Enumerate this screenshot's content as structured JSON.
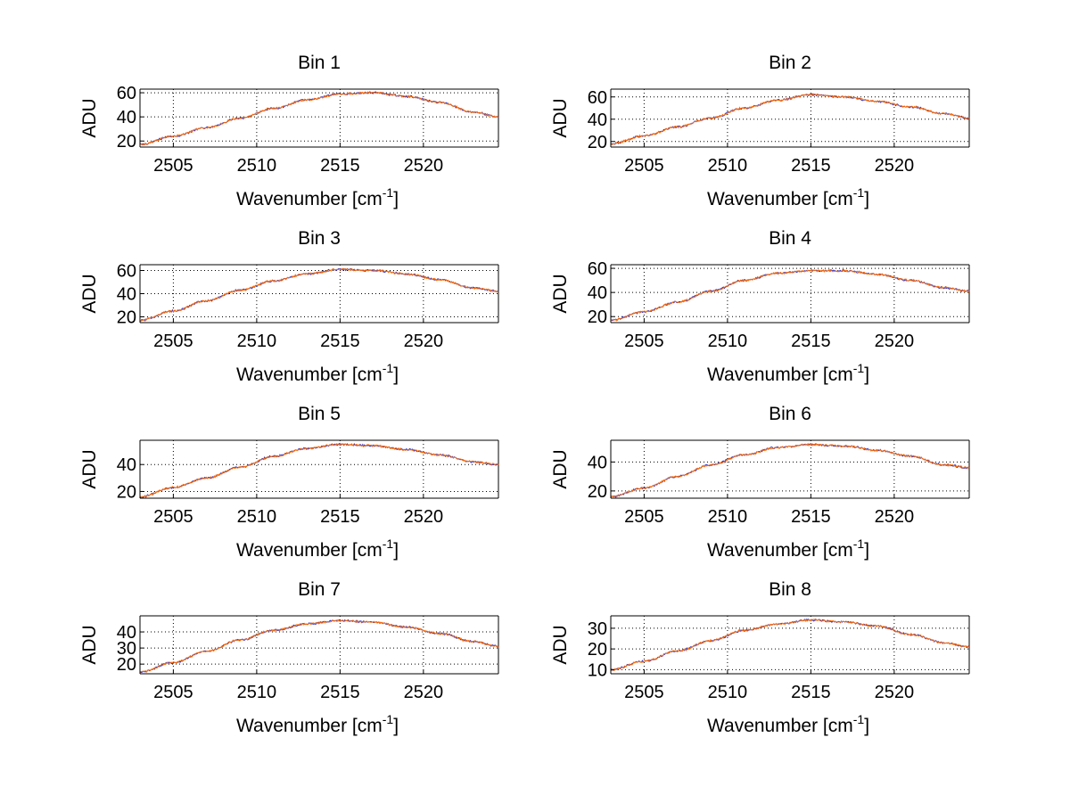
{
  "figure": {
    "background": "#ffffff",
    "layout": "4 rows x 2 columns",
    "series_colors": [
      "#3030c0",
      "#ff6a00"
    ]
  },
  "chart_data": [
    {
      "type": "line",
      "title": "Bin 1",
      "xlabel_main": "Wavenumber [cm",
      "xlabel_sup": "-1",
      "xlabel_end": "]",
      "ylabel": "ADU",
      "xlim": [
        2503,
        2524.5
      ],
      "ylim": [
        15,
        63
      ],
      "xticks": [
        2505,
        2510,
        2515,
        2520
      ],
      "yticks": [
        20,
        40,
        60
      ],
      "grid": true,
      "series": [
        {
          "x": [
            2503,
            2505,
            2507,
            2509,
            2511,
            2513,
            2515,
            2517,
            2519,
            2521,
            2523,
            2524.5
          ],
          "values": [
            17,
            24,
            31,
            39,
            47,
            54,
            59,
            60,
            57,
            52,
            44,
            40
          ]
        }
      ]
    },
    {
      "type": "line",
      "title": "Bin 2",
      "xlabel_main": "Wavenumber [cm",
      "xlabel_sup": "-1",
      "xlabel_end": "]",
      "ylabel": "ADU",
      "xlim": [
        2503,
        2524.5
      ],
      "ylim": [
        15,
        67
      ],
      "xticks": [
        2505,
        2510,
        2515,
        2520
      ],
      "yticks": [
        20,
        40,
        60
      ],
      "grid": true,
      "series": [
        {
          "x": [
            2503,
            2505,
            2507,
            2509,
            2511,
            2513,
            2515,
            2517,
            2519,
            2521,
            2523,
            2524.5
          ],
          "values": [
            18,
            25,
            33,
            41,
            50,
            57,
            62,
            60,
            56,
            51,
            45,
            41
          ]
        }
      ]
    },
    {
      "type": "line",
      "title": "Bin 3",
      "xlabel_main": "Wavenumber [cm",
      "xlabel_sup": "-1",
      "xlabel_end": "]",
      "ylabel": "ADU",
      "xlim": [
        2503,
        2524.5
      ],
      "ylim": [
        15,
        65
      ],
      "xticks": [
        2505,
        2510,
        2515,
        2520
      ],
      "yticks": [
        20,
        40,
        60
      ],
      "grid": true,
      "series": [
        {
          "x": [
            2503,
            2505,
            2507,
            2509,
            2511,
            2513,
            2515,
            2517,
            2519,
            2521,
            2523,
            2524.5
          ],
          "values": [
            17,
            25,
            34,
            43,
            51,
            57,
            61,
            60,
            57,
            52,
            45,
            42
          ]
        }
      ]
    },
    {
      "type": "line",
      "title": "Bin 4",
      "xlabel_main": "Wavenumber [cm",
      "xlabel_sup": "-1",
      "xlabel_end": "]",
      "ylabel": "ADU",
      "xlim": [
        2503,
        2524.5
      ],
      "ylim": [
        15,
        63
      ],
      "xticks": [
        2505,
        2510,
        2515,
        2520
      ],
      "yticks": [
        20,
        40,
        60
      ],
      "grid": true,
      "series": [
        {
          "x": [
            2503,
            2505,
            2507,
            2509,
            2511,
            2513,
            2515,
            2517,
            2519,
            2521,
            2523,
            2524.5
          ],
          "values": [
            17,
            24,
            32,
            41,
            50,
            56,
            58,
            58,
            55,
            50,
            44,
            41
          ]
        }
      ]
    },
    {
      "type": "line",
      "title": "Bin 5",
      "xlabel_main": "Wavenumber [cm",
      "xlabel_sup": "-1",
      "xlabel_end": "]",
      "ylabel": "ADU",
      "xlim": [
        2503,
        2524.5
      ],
      "ylim": [
        15,
        58
      ],
      "xticks": [
        2505,
        2510,
        2515,
        2520
      ],
      "yticks": [
        20,
        40
      ],
      "grid": true,
      "series": [
        {
          "x": [
            2503,
            2505,
            2507,
            2509,
            2511,
            2513,
            2515,
            2517,
            2519,
            2521,
            2523,
            2524.5
          ],
          "values": [
            16,
            23,
            30,
            38,
            46,
            52,
            55,
            54,
            51,
            47,
            42,
            40
          ]
        }
      ]
    },
    {
      "type": "line",
      "title": "Bin 6",
      "xlabel_main": "Wavenumber [cm",
      "xlabel_sup": "-1",
      "xlabel_end": "]",
      "ylabel": "ADU",
      "xlim": [
        2503,
        2524.5
      ],
      "ylim": [
        15,
        55
      ],
      "xticks": [
        2505,
        2510,
        2515,
        2520
      ],
      "yticks": [
        20,
        40
      ],
      "grid": true,
      "series": [
        {
          "x": [
            2503,
            2505,
            2507,
            2509,
            2511,
            2513,
            2515,
            2517,
            2519,
            2521,
            2523,
            2524.5
          ],
          "values": [
            16,
            22,
            30,
            38,
            45,
            50,
            52,
            51,
            48,
            44,
            38,
            36
          ]
        }
      ]
    },
    {
      "type": "line",
      "title": "Bin 7",
      "xlabel_main": "Wavenumber [cm",
      "xlabel_sup": "-1",
      "xlabel_end": "]",
      "ylabel": "ADU",
      "xlim": [
        2503,
        2524.5
      ],
      "ylim": [
        14,
        50
      ],
      "xticks": [
        2505,
        2510,
        2515,
        2520
      ],
      "yticks": [
        20,
        30,
        40
      ],
      "grid": true,
      "series": [
        {
          "x": [
            2503,
            2505,
            2507,
            2509,
            2511,
            2513,
            2515,
            2517,
            2519,
            2521,
            2523,
            2524.5
          ],
          "values": [
            15,
            21,
            28,
            35,
            41,
            45,
            47,
            46,
            43,
            39,
            34,
            31
          ]
        }
      ]
    },
    {
      "type": "line",
      "title": "Bin 8",
      "xlabel_main": "Wavenumber [cm",
      "xlabel_sup": "-1",
      "xlabel_end": "]",
      "ylabel": "ADU",
      "xlim": [
        2503,
        2524.5
      ],
      "ylim": [
        8,
        36
      ],
      "xticks": [
        2505,
        2510,
        2515,
        2520
      ],
      "yticks": [
        10,
        20,
        30
      ],
      "grid": true,
      "series": [
        {
          "x": [
            2503,
            2505,
            2507,
            2509,
            2511,
            2513,
            2515,
            2517,
            2519,
            2521,
            2523,
            2524.5
          ],
          "values": [
            10,
            14,
            19,
            24,
            29,
            32,
            34,
            33,
            31,
            27,
            23,
            21
          ]
        }
      ]
    }
  ]
}
